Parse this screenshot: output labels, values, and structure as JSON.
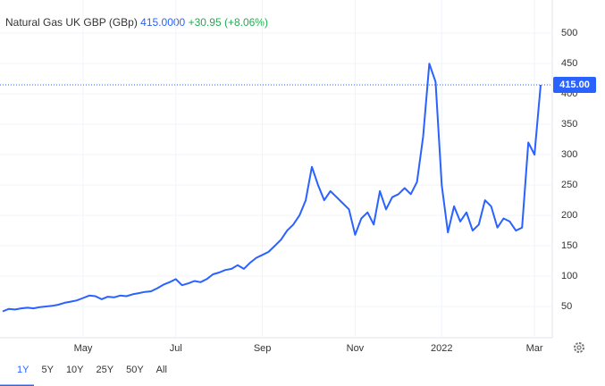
{
  "header": {
    "name": "Natural Gas UK GBP (GBp)",
    "price": "415.0000",
    "change": "+30.95 (+8.06%)"
  },
  "chart_data": {
    "type": "line",
    "categories": [
      null,
      null,
      null,
      null,
      null,
      null,
      null,
      null,
      null,
      null,
      null,
      null,
      null,
      "May",
      null,
      null,
      null,
      null,
      null,
      null,
      null,
      null,
      null,
      null,
      null,
      null,
      null,
      null,
      "Jul",
      null,
      null,
      null,
      null,
      null,
      null,
      null,
      null,
      null,
      null,
      null,
      null,
      null,
      "Sep",
      null,
      null,
      null,
      null,
      null,
      null,
      null,
      null,
      null,
      null,
      null,
      null,
      null,
      null,
      "Nov",
      null,
      null,
      null,
      null,
      null,
      null,
      null,
      null,
      null,
      null,
      null,
      null,
      null,
      "2022",
      null,
      null,
      null,
      null,
      null,
      null,
      null,
      null,
      null,
      null,
      null,
      null,
      null,
      null,
      "Mar",
      null
    ],
    "series": [
      {
        "name": "Natural Gas UK GBP",
        "color": "#2962ff",
        "values": [
          42,
          46,
          45,
          47,
          48,
          47,
          49,
          50,
          51,
          53,
          56,
          58,
          60,
          64,
          68,
          67,
          62,
          66,
          65,
          68,
          67,
          70,
          72,
          74,
          75,
          80,
          86,
          90,
          95,
          85,
          88,
          92,
          90,
          95,
          103,
          106,
          110,
          112,
          118,
          112,
          122,
          130,
          135,
          140,
          150,
          160,
          175,
          185,
          200,
          225,
          280,
          250,
          225,
          240,
          230,
          220,
          210,
          168,
          195,
          205,
          185,
          240,
          210,
          230,
          235,
          245,
          235,
          255,
          330,
          450,
          420,
          250,
          172,
          215,
          190,
          205,
          175,
          185,
          225,
          215,
          180,
          195,
          190,
          175,
          180,
          320,
          300,
          415
        ]
      }
    ],
    "ylim": [
      0,
      540
    ],
    "yticks": [
      50,
      100,
      150,
      200,
      250,
      300,
      350,
      400,
      450,
      500
    ],
    "price_label": {
      "value": 415,
      "label": "415.00"
    },
    "grid": true
  },
  "ranges": [
    "1Y",
    "5Y",
    "10Y",
    "25Y",
    "50Y",
    "All"
  ]
}
